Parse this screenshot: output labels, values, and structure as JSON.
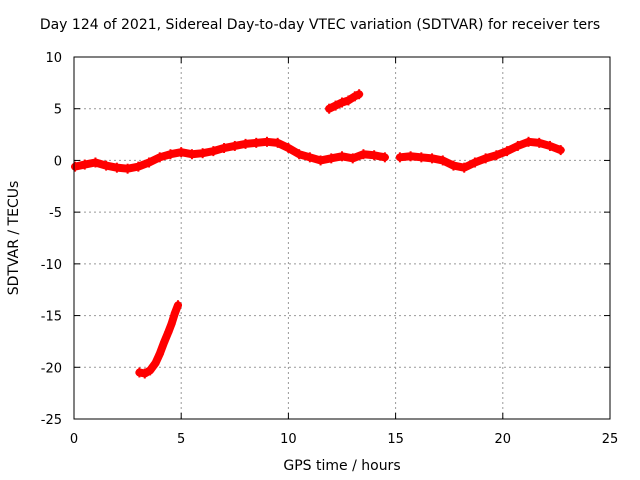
{
  "chart_data": {
    "type": "scatter",
    "title": "Day 124 of 2021, Sidereal Day-to-day VTEC variation (SDTVAR) for receiver ters",
    "xlabel": "GPS time / hours",
    "ylabel": "SDTVAR / TECUs",
    "xlim": [
      0,
      25
    ],
    "ylim": [
      -25,
      10
    ],
    "xticks": [
      0,
      5,
      10,
      15,
      20,
      25
    ],
    "yticks": [
      -25,
      -20,
      -15,
      -10,
      -5,
      0,
      5,
      10
    ],
    "xtick_labels": [
      "0",
      "5",
      "10",
      "15",
      "20",
      "25"
    ],
    "ytick_labels": [
      "-25",
      "-20",
      "-15",
      "-10",
      "-5",
      "0",
      "5",
      "10"
    ],
    "grid": true,
    "marker_color": "#ff0000",
    "series": [
      {
        "name": "main-band",
        "x": [
          0.05,
          0.5,
          1.0,
          1.5,
          2.0,
          2.5,
          3.0,
          3.5,
          4.0,
          4.5,
          5.0,
          5.5,
          6.0,
          6.5,
          7.0,
          7.5,
          8.0,
          8.5,
          9.0,
          9.5,
          10.0,
          10.5,
          11.0,
          11.5,
          12.0,
          12.5,
          13.0,
          13.5,
          14.0,
          14.5
        ],
        "y": [
          -0.6,
          -0.4,
          -0.2,
          -0.5,
          -0.7,
          -0.8,
          -0.6,
          -0.2,
          0.3,
          0.6,
          0.8,
          0.6,
          0.7,
          0.9,
          1.2,
          1.4,
          1.6,
          1.7,
          1.8,
          1.7,
          1.2,
          0.6,
          0.3,
          0.0,
          0.2,
          0.4,
          0.2,
          0.6,
          0.5,
          0.3
        ]
      },
      {
        "name": "main-band-2",
        "x": [
          15.2,
          15.7,
          16.2,
          16.7,
          17.2,
          17.7,
          18.2,
          18.7,
          19.2,
          19.7,
          20.2,
          20.7,
          21.2,
          21.7,
          22.2,
          22.7
        ],
        "y": [
          0.3,
          0.4,
          0.3,
          0.2,
          0.0,
          -0.5,
          -0.7,
          -0.2,
          0.2,
          0.5,
          0.9,
          1.4,
          1.8,
          1.7,
          1.4,
          1.0
        ]
      },
      {
        "name": "upper-arc",
        "x": [
          11.9,
          12.2,
          12.5,
          12.8,
          13.1,
          13.3
        ],
        "y": [
          5.0,
          5.3,
          5.6,
          5.8,
          6.2,
          6.4
        ]
      },
      {
        "name": "lower-arc",
        "x": [
          3.05,
          3.3,
          3.55,
          3.8,
          4.0,
          4.2,
          4.4,
          4.55,
          4.7,
          4.85
        ],
        "y": [
          -20.5,
          -20.6,
          -20.3,
          -19.6,
          -18.7,
          -17.6,
          -16.6,
          -15.8,
          -14.8,
          -14.0
        ]
      }
    ]
  }
}
